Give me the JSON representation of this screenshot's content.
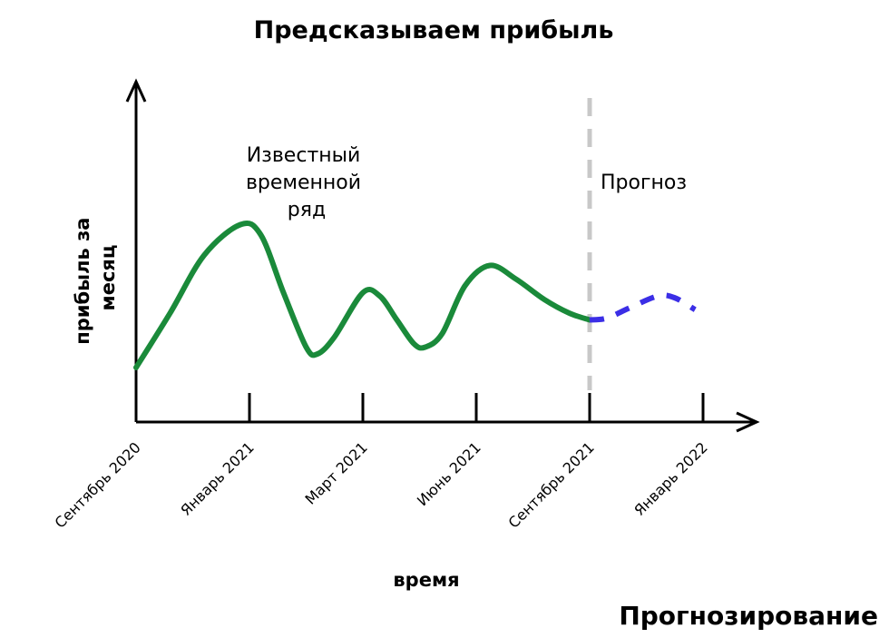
{
  "chart_data": {
    "type": "line",
    "title": "Предсказываем прибыль",
    "xlabel": "время",
    "ylabel": "прибыль за месяц",
    "categories": [
      "Сентябрь 2020",
      "Январь 2021",
      "Март 2021",
      "Июнь 2021",
      "Сентябрь 2021",
      "Январь 2022"
    ],
    "ylim": [
      0,
      10
    ],
    "grid": false,
    "legend": "none",
    "series": [
      {
        "name": "Известный временной ряд",
        "color": "#1a8a3a",
        "style": "solid",
        "points": [
          [
            0.0,
            1.6
          ],
          [
            0.3,
            3.2
          ],
          [
            0.6,
            4.9
          ],
          [
            0.92,
            5.8
          ],
          [
            1.1,
            5.5
          ],
          [
            1.3,
            3.8
          ],
          [
            1.5,
            2.2
          ],
          [
            1.6,
            2.0
          ],
          [
            1.75,
            2.5
          ],
          [
            2.0,
            3.8
          ],
          [
            2.15,
            3.7
          ],
          [
            2.3,
            3.0
          ],
          [
            2.45,
            2.3
          ],
          [
            2.55,
            2.2
          ],
          [
            2.7,
            2.6
          ],
          [
            2.9,
            4.0
          ],
          [
            3.12,
            4.6
          ],
          [
            3.35,
            4.2
          ],
          [
            3.6,
            3.6
          ],
          [
            3.82,
            3.2
          ],
          [
            4.0,
            3.0
          ]
        ]
      },
      {
        "name": "Прогноз",
        "color": "#3b2ee6",
        "style": "dashed",
        "points": [
          [
            4.0,
            3.0
          ],
          [
            4.15,
            3.05
          ],
          [
            4.35,
            3.35
          ],
          [
            4.6,
            3.7
          ],
          [
            4.75,
            3.65
          ],
          [
            4.93,
            3.3
          ]
        ]
      }
    ],
    "annotations": [
      "Известный временной ряд",
      "Прогноз"
    ],
    "forecast_start": 4.0
  },
  "text": {
    "title": "Предсказываем прибыль",
    "known_line1": "Известный",
    "known_line2": "временной",
    "known_line3": "ряд",
    "forecast": "Прогноз",
    "ylabel_line1": "прибыль за",
    "ylabel_line2": "месяц",
    "xlabel": "время",
    "corner": "Прогнозирование"
  }
}
